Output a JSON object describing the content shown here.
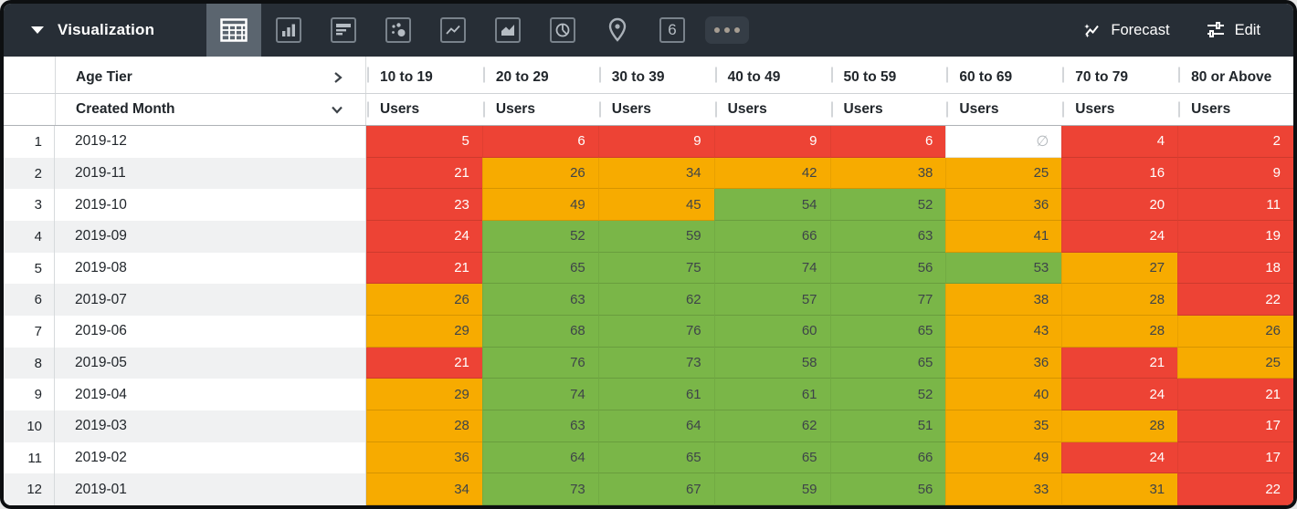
{
  "toolbar": {
    "title": "Visualization",
    "viz_types": [
      {
        "name": "table",
        "selected": true
      },
      {
        "name": "bar-chart",
        "selected": false
      },
      {
        "name": "horizontal-bars",
        "selected": false
      },
      {
        "name": "scatter",
        "selected": false
      },
      {
        "name": "line-chart",
        "selected": false
      },
      {
        "name": "area-chart",
        "selected": false
      },
      {
        "name": "pie-chart",
        "selected": false
      },
      {
        "name": "map-pin",
        "selected": false
      },
      {
        "name": "single-value",
        "selected": false
      },
      {
        "name": "more",
        "selected": false
      }
    ],
    "single_value_glyph": "6",
    "forecast_label": "Forecast",
    "edit_label": "Edit"
  },
  "table": {
    "pivot_field": "Age Tier",
    "row_field": "Created Month",
    "measure_label": "Users",
    "columns": [
      "10 to 19",
      "20 to 29",
      "30 to 39",
      "40 to 49",
      "50 to 59",
      "60 to 69",
      "70 to 79",
      "80 or Above"
    ],
    "null_symbol": "∅",
    "rows": [
      {
        "index": "1",
        "month": "2019-12",
        "cells": [
          {
            "v": "5",
            "c": "red"
          },
          {
            "v": "6",
            "c": "red"
          },
          {
            "v": "9",
            "c": "red"
          },
          {
            "v": "9",
            "c": "red"
          },
          {
            "v": "6",
            "c": "red"
          },
          {
            "v": "∅",
            "c": "empty"
          },
          {
            "v": "4",
            "c": "red"
          },
          {
            "v": "2",
            "c": "red"
          }
        ]
      },
      {
        "index": "2",
        "month": "2019-11",
        "cells": [
          {
            "v": "21",
            "c": "red"
          },
          {
            "v": "26",
            "c": "orange"
          },
          {
            "v": "34",
            "c": "orange"
          },
          {
            "v": "42",
            "c": "orange"
          },
          {
            "v": "38",
            "c": "orange"
          },
          {
            "v": "25",
            "c": "orange"
          },
          {
            "v": "16",
            "c": "red"
          },
          {
            "v": "9",
            "c": "red"
          }
        ]
      },
      {
        "index": "3",
        "month": "2019-10",
        "cells": [
          {
            "v": "23",
            "c": "red"
          },
          {
            "v": "49",
            "c": "orange"
          },
          {
            "v": "45",
            "c": "orange"
          },
          {
            "v": "54",
            "c": "green"
          },
          {
            "v": "52",
            "c": "green"
          },
          {
            "v": "36",
            "c": "orange"
          },
          {
            "v": "20",
            "c": "red"
          },
          {
            "v": "11",
            "c": "red"
          }
        ]
      },
      {
        "index": "4",
        "month": "2019-09",
        "cells": [
          {
            "v": "24",
            "c": "red"
          },
          {
            "v": "52",
            "c": "green"
          },
          {
            "v": "59",
            "c": "green"
          },
          {
            "v": "66",
            "c": "green"
          },
          {
            "v": "63",
            "c": "green"
          },
          {
            "v": "41",
            "c": "orange"
          },
          {
            "v": "24",
            "c": "red"
          },
          {
            "v": "19",
            "c": "red"
          }
        ]
      },
      {
        "index": "5",
        "month": "2019-08",
        "cells": [
          {
            "v": "21",
            "c": "red"
          },
          {
            "v": "65",
            "c": "green"
          },
          {
            "v": "75",
            "c": "green"
          },
          {
            "v": "74",
            "c": "green"
          },
          {
            "v": "56",
            "c": "green"
          },
          {
            "v": "53",
            "c": "green"
          },
          {
            "v": "27",
            "c": "orange"
          },
          {
            "v": "18",
            "c": "red"
          }
        ]
      },
      {
        "index": "6",
        "month": "2019-07",
        "cells": [
          {
            "v": "26",
            "c": "orange"
          },
          {
            "v": "63",
            "c": "green"
          },
          {
            "v": "62",
            "c": "green"
          },
          {
            "v": "57",
            "c": "green"
          },
          {
            "v": "77",
            "c": "green"
          },
          {
            "v": "38",
            "c": "orange"
          },
          {
            "v": "28",
            "c": "orange"
          },
          {
            "v": "22",
            "c": "red"
          }
        ]
      },
      {
        "index": "7",
        "month": "2019-06",
        "cells": [
          {
            "v": "29",
            "c": "orange"
          },
          {
            "v": "68",
            "c": "green"
          },
          {
            "v": "76",
            "c": "green"
          },
          {
            "v": "60",
            "c": "green"
          },
          {
            "v": "65",
            "c": "green"
          },
          {
            "v": "43",
            "c": "orange"
          },
          {
            "v": "28",
            "c": "orange"
          },
          {
            "v": "26",
            "c": "orange"
          }
        ]
      },
      {
        "index": "8",
        "month": "2019-05",
        "cells": [
          {
            "v": "21",
            "c": "red"
          },
          {
            "v": "76",
            "c": "green"
          },
          {
            "v": "73",
            "c": "green"
          },
          {
            "v": "58",
            "c": "green"
          },
          {
            "v": "65",
            "c": "green"
          },
          {
            "v": "36",
            "c": "orange"
          },
          {
            "v": "21",
            "c": "red"
          },
          {
            "v": "25",
            "c": "orange"
          }
        ]
      },
      {
        "index": "9",
        "month": "2019-04",
        "cells": [
          {
            "v": "29",
            "c": "orange"
          },
          {
            "v": "74",
            "c": "green"
          },
          {
            "v": "61",
            "c": "green"
          },
          {
            "v": "61",
            "c": "green"
          },
          {
            "v": "52",
            "c": "green"
          },
          {
            "v": "40",
            "c": "orange"
          },
          {
            "v": "24",
            "c": "red"
          },
          {
            "v": "21",
            "c": "red"
          }
        ]
      },
      {
        "index": "10",
        "month": "2019-03",
        "cells": [
          {
            "v": "28",
            "c": "orange"
          },
          {
            "v": "63",
            "c": "green"
          },
          {
            "v": "64",
            "c": "green"
          },
          {
            "v": "62",
            "c": "green"
          },
          {
            "v": "51",
            "c": "green"
          },
          {
            "v": "35",
            "c": "orange"
          },
          {
            "v": "28",
            "c": "orange"
          },
          {
            "v": "17",
            "c": "red"
          }
        ]
      },
      {
        "index": "11",
        "month": "2019-02",
        "cells": [
          {
            "v": "36",
            "c": "orange"
          },
          {
            "v": "64",
            "c": "green"
          },
          {
            "v": "65",
            "c": "green"
          },
          {
            "v": "65",
            "c": "green"
          },
          {
            "v": "66",
            "c": "green"
          },
          {
            "v": "49",
            "c": "orange"
          },
          {
            "v": "24",
            "c": "red"
          },
          {
            "v": "17",
            "c": "red"
          }
        ]
      },
      {
        "index": "12",
        "month": "2019-01",
        "cells": [
          {
            "v": "34",
            "c": "orange"
          },
          {
            "v": "73",
            "c": "green"
          },
          {
            "v": "67",
            "c": "green"
          },
          {
            "v": "59",
            "c": "green"
          },
          {
            "v": "56",
            "c": "green"
          },
          {
            "v": "33",
            "c": "orange"
          },
          {
            "v": "31",
            "c": "orange"
          },
          {
            "v": "22",
            "c": "red"
          }
        ]
      }
    ]
  },
  "colors": {
    "red": "#ed4335",
    "orange": "#f7ab00",
    "green": "#7ab648",
    "toolbar_bg": "#272e36",
    "selected_icon_bg": "#5b656f"
  },
  "chart_data": {
    "type": "heatmap",
    "title": "Users by Created Month and Age Tier",
    "x_categories": [
      "10 to 19",
      "20 to 29",
      "30 to 39",
      "40 to 49",
      "50 to 59",
      "60 to 69",
      "70 to 79",
      "80 or Above"
    ],
    "y_categories": [
      "2019-12",
      "2019-11",
      "2019-10",
      "2019-09",
      "2019-08",
      "2019-07",
      "2019-06",
      "2019-05",
      "2019-04",
      "2019-03",
      "2019-02",
      "2019-01"
    ],
    "values": [
      [
        5,
        6,
        9,
        9,
        6,
        null,
        4,
        2
      ],
      [
        21,
        26,
        34,
        42,
        38,
        25,
        16,
        9
      ],
      [
        23,
        49,
        45,
        54,
        52,
        36,
        20,
        11
      ],
      [
        24,
        52,
        59,
        66,
        63,
        41,
        24,
        19
      ],
      [
        21,
        65,
        75,
        74,
        56,
        53,
        27,
        18
      ],
      [
        26,
        63,
        62,
        57,
        77,
        38,
        28,
        22
      ],
      [
        29,
        68,
        76,
        60,
        65,
        43,
        28,
        26
      ],
      [
        21,
        76,
        73,
        58,
        65,
        36,
        21,
        25
      ],
      [
        29,
        74,
        61,
        61,
        52,
        40,
        24,
        21
      ],
      [
        28,
        63,
        64,
        62,
        51,
        35,
        28,
        17
      ],
      [
        36,
        64,
        65,
        65,
        66,
        49,
        24,
        17
      ],
      [
        34,
        73,
        67,
        59,
        56,
        33,
        31,
        22
      ]
    ],
    "color_bins": {
      "red": "low (< ~25)",
      "orange": "mid (~25-49)",
      "green": "high (>= ~50)"
    }
  }
}
